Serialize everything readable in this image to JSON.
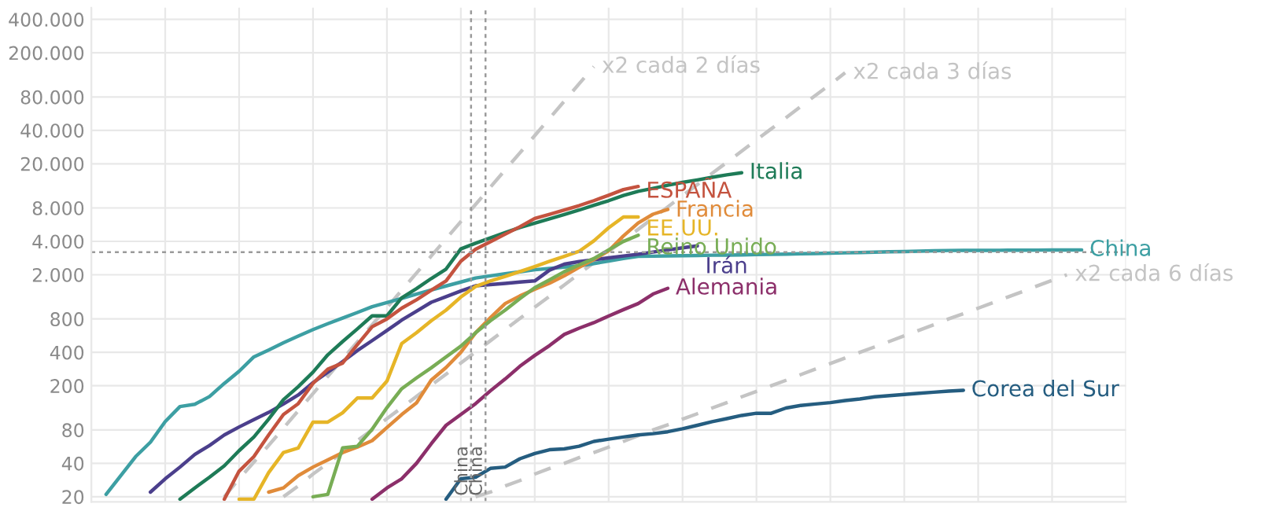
{
  "chart_data": {
    "type": "line",
    "log": "y",
    "grid": true,
    "tick_labels": "y",
    "categories": [
      null,
      null,
      null,
      null,
      null,
      null,
      null,
      null,
      null,
      null,
      null,
      null,
      null,
      null,
      null,
      null,
      null,
      null,
      null,
      null,
      null,
      null,
      null,
      null,
      null,
      null,
      null,
      null,
      null,
      null,
      null,
      null,
      null,
      null,
      null,
      null,
      null,
      null,
      null,
      null,
      null,
      null,
      null,
      null,
      null,
      null,
      null,
      null,
      null,
      null,
      null,
      null,
      null,
      null,
      null,
      null,
      null,
      null,
      null,
      null,
      null,
      null,
      null,
      null,
      null,
      null,
      null,
      null,
      null,
      null,
      null
    ],
    "ylim": [
      18,
      510000
    ],
    "yticks": [
      20,
      40,
      80,
      200,
      400,
      800,
      {
        "value": 2000,
        "label": "2.000"
      },
      {
        "value": 4000,
        "label": "4.000"
      },
      {
        "value": 8000,
        "label": "8.000"
      },
      {
        "value": 20000,
        "label": "20.000"
      },
      {
        "value": 40000,
        "label": "40.000"
      },
      {
        "value": 80000,
        "label": "80.000"
      },
      {
        "value": 200000,
        "label": "200.000"
      },
      {
        "value": 400000,
        "label": "400.000"
      }
    ],
    "series": [
      {
        "name": "x2 cada 2 días",
        "color": "#c4c4c4",
        "line_style": "dashed",
        "values": [
          null,
          null,
          null,
          null,
          null,
          null,
          null,
          null,
          null,
          20,
          29,
          41,
          58,
          83,
          119,
          170,
          243,
          347,
          496,
          708,
          1010,
          1450,
          2070,
          2950,
          4220,
          6030,
          8610,
          12300,
          17600,
          25100,
          35900,
          51300,
          73300,
          105000,
          150000,
          null,
          null,
          null,
          null,
          null,
          null,
          null,
          null,
          null,
          null,
          null,
          null,
          null,
          null,
          null,
          null,
          null,
          null,
          null,
          null,
          null,
          null,
          null,
          null,
          null,
          null,
          null,
          null,
          null,
          null,
          null,
          null,
          null,
          null,
          null,
          null
        ]
      },
      {
        "name": "x2 cada 3 días",
        "color": "#c4c4c4",
        "line_style": "dashed",
        "values": [
          null,
          null,
          null,
          null,
          null,
          null,
          null,
          null,
          null,
          null,
          null,
          null,
          null,
          20,
          25,
          32,
          40,
          50,
          64,
          80,
          101,
          127,
          160,
          202,
          254,
          320,
          404,
          509,
          641,
          808,
          1020,
          1280,
          1620,
          2040,
          2570,
          3240,
          4080,
          5140,
          6480,
          8170,
          10300,
          13000,
          16400,
          20600,
          26000,
          32800,
          41300,
          52000,
          65600,
          82700,
          104000,
          132000,
          null,
          null,
          null,
          null,
          null,
          null,
          null,
          null,
          null,
          null,
          null,
          null,
          null,
          null,
          null,
          null,
          null,
          null,
          null
        ]
      },
      {
        "name": "x2 cada 6 días",
        "color": "#c4c4c4",
        "line_style": "dashed",
        "values": [
          null,
          null,
          null,
          null,
          null,
          null,
          null,
          null,
          null,
          null,
          null,
          null,
          null,
          null,
          null,
          null,
          null,
          null,
          null,
          null,
          null,
          null,
          null,
          null,
          null,
          null,
          20,
          22,
          25,
          28,
          32,
          36,
          40,
          45,
          50,
          56,
          63,
          71,
          80,
          89,
          100,
          112,
          126,
          141,
          159,
          178,
          200,
          224,
          252,
          283,
          317,
          356,
          400,
          448,
          502,
          564,
          632,
          710,
          800,
          890,
          1000,
          1120,
          1260,
          1410,
          1590,
          1780,
          2000,
          null,
          null,
          null,
          null
        ]
      },
      {
        "name": "China",
        "color": "#3d9fa3",
        "values": [
          null,
          21,
          31,
          46,
          62,
          95,
          130,
          136,
          160,
          210,
          270,
          364,
          420,
          488,
          560,
          641,
          725,
          814,
          914,
          1030,
          1123,
          1226,
          1337,
          1460,
          1585,
          1720,
          1870,
          1955,
          2040,
          2125,
          2220,
          2280,
          2345,
          2400,
          2520,
          2660,
          2800,
          2930,
          2940,
          2960,
          2970,
          2980,
          3000,
          3010,
          3020,
          3040,
          3050,
          3070,
          3090,
          3110,
          3130,
          3150,
          3170,
          3200,
          3220,
          3240,
          3260,
          3290,
          3310,
          3315,
          3320,
          3320,
          3325,
          3330,
          3335,
          3340,
          3345,
          3350,
          null,
          null,
          null
        ]
      },
      {
        "name": "Irán",
        "color": "#4b3f8c",
        "values": [
          null,
          null,
          null,
          null,
          22,
          29,
          37,
          48,
          58,
          72,
          85,
          99,
          115,
          137,
          165,
          213,
          265,
          330,
          415,
          510,
          630,
          780,
          940,
          1130,
          1270,
          1430,
          1590,
          1630,
          1670,
          1720,
          1760,
          2200,
          2490,
          2630,
          2730,
          2840,
          2950,
          3060,
          3200,
          3350,
          3500,
          3640,
          null,
          null,
          null,
          null,
          null,
          null,
          null,
          null,
          null,
          null,
          null,
          null,
          null,
          null,
          null,
          null,
          null,
          null,
          null,
          null,
          null,
          null,
          null,
          null,
          null,
          null,
          null,
          null,
          null
        ]
      },
      {
        "name": "Italia",
        "color": "#1e7b57",
        "values": [
          null,
          null,
          null,
          null,
          null,
          null,
          19,
          24,
          30,
          38,
          52,
          69,
          100,
          150,
          196,
          265,
          380,
          500,
          650,
          853,
          853,
          1240,
          1500,
          1850,
          2250,
          3420,
          3850,
          4300,
          4800,
          5330,
          5840,
          6390,
          6990,
          7650,
          8450,
          9300,
          10350,
          11300,
          12000,
          12800,
          13600,
          14300,
          15100,
          15900,
          16600,
          null,
          null,
          null,
          null,
          null,
          null,
          null,
          null,
          null,
          null,
          null,
          null,
          null,
          null,
          null,
          null,
          null,
          null,
          null,
          null,
          null,
          null,
          null,
          null,
          null,
          null
        ]
      },
      {
        "name": "ESPAÑA",
        "color": "#c4533f",
        "values": [
          null,
          null,
          null,
          null,
          null,
          null,
          null,
          null,
          null,
          19,
          34,
          46,
          72,
          110,
          138,
          210,
          282,
          320,
          470,
          680,
          800,
          1000,
          1190,
          1450,
          1760,
          2650,
          3400,
          3960,
          4640,
          5420,
          6430,
          7000,
          7650,
          8400,
          9300,
          10400,
          11700,
          12500,
          null,
          null,
          null,
          null,
          null,
          null,
          null,
          null,
          null,
          null,
          null,
          null,
          null,
          null,
          null,
          null,
          null,
          null,
          null,
          null,
          null,
          null,
          null,
          null,
          null,
          null,
          null,
          null,
          null,
          null,
          null,
          null,
          null
        ]
      },
      {
        "name": "EE.UU.",
        "color": "#e6b527",
        "values": [
          null,
          null,
          null,
          null,
          null,
          null,
          null,
          null,
          null,
          null,
          19,
          19,
          33,
          50,
          55,
          94,
          94,
          114,
          155,
          155,
          220,
          480,
          600,
          770,
          960,
          1260,
          1570,
          1760,
          1930,
          2140,
          2370,
          2640,
          2930,
          3250,
          4040,
          5300,
          6630,
          6630,
          null,
          null,
          null,
          null,
          null,
          null,
          null,
          null,
          null,
          null,
          null,
          null,
          null,
          null,
          null,
          null,
          null,
          null,
          null,
          null,
          null,
          null,
          null,
          null,
          null,
          null,
          null,
          null,
          null,
          null,
          null,
          null,
          null
        ]
      },
      {
        "name": "Francia",
        "color": "#e08b3a",
        "values": [
          null,
          null,
          null,
          null,
          null,
          null,
          null,
          null,
          null,
          null,
          null,
          null,
          22,
          24,
          31,
          37,
          43,
          50,
          56,
          64,
          84,
          110,
          140,
          225,
          292,
          400,
          600,
          820,
          1100,
          1290,
          1480,
          1680,
          1960,
          2330,
          2750,
          3290,
          4470,
          5860,
          7020,
          7760,
          null,
          null,
          null,
          null,
          null,
          null,
          null,
          null,
          null,
          null,
          null,
          null,
          null,
          null,
          null,
          null,
          null,
          null,
          null,
          null,
          null,
          null,
          null,
          null,
          null,
          null,
          null,
          null,
          null,
          null,
          null
        ]
      },
      {
        "name": "Reino Unido",
        "color": "#78ad55",
        "values": [
          null,
          null,
          null,
          null,
          null,
          null,
          null,
          null,
          null,
          null,
          null,
          null,
          null,
          null,
          null,
          20,
          21,
          55,
          57,
          81,
          127,
          188,
          235,
          290,
          364,
          454,
          600,
          770,
          960,
          1220,
          1530,
          1800,
          2130,
          2450,
          2800,
          3350,
          3990,
          4540,
          null,
          null,
          null,
          null,
          null,
          null,
          null,
          null,
          null,
          null,
          null,
          null,
          null,
          null,
          null,
          null,
          null,
          null,
          null,
          null,
          null,
          null,
          null,
          null,
          null,
          null,
          null,
          null,
          null,
          null,
          null,
          null,
          null
        ]
      },
      {
        "name": "Alemania",
        "color": "#8c2f6a",
        "values": [
          null,
          null,
          null,
          null,
          null,
          null,
          null,
          null,
          null,
          null,
          null,
          null,
          null,
          null,
          null,
          null,
          null,
          null,
          null,
          19,
          24,
          29,
          40,
          60,
          88,
          110,
          138,
          180,
          230,
          300,
          375,
          460,
          580,
          660,
          740,
          850,
          970,
          1100,
          1340,
          1510,
          null,
          null,
          null,
          null,
          null,
          null,
          null,
          null,
          null,
          null,
          null,
          null,
          null,
          null,
          null,
          null,
          null,
          null,
          null,
          null,
          null,
          null,
          null,
          null,
          null,
          null,
          null,
          null,
          null,
          null,
          null
        ]
      },
      {
        "name": "Corea del Sur",
        "color": "#255d80",
        "values": [
          null,
          null,
          null,
          null,
          null,
          null,
          null,
          null,
          null,
          null,
          null,
          null,
          null,
          null,
          null,
          null,
          null,
          null,
          null,
          null,
          null,
          null,
          null,
          null,
          19,
          29,
          30,
          36,
          37,
          44,
          49,
          53,
          54,
          57,
          63,
          66,
          69,
          72,
          74,
          77,
          82,
          88,
          95,
          101,
          108,
          113,
          113,
          126,
          133,
          137,
          141,
          147,
          152,
          159,
          163,
          167,
          171,
          175,
          179,
          182,
          null,
          null,
          null,
          null,
          null,
          null,
          null,
          null,
          null,
          null,
          null
        ]
      }
    ],
    "ref_lines": [
      {
        "axis": "y",
        "value": 3200,
        "color": "#9a9a9a",
        "line_style": "dotted"
      },
      {
        "axis": "x",
        "label": "China",
        "color": "#9a9a9a",
        "line_style": "dotted"
      },
      {
        "axis": "x",
        "label": "China",
        "color": "#9a9a9a",
        "line_style": "dotted"
      }
    ]
  }
}
